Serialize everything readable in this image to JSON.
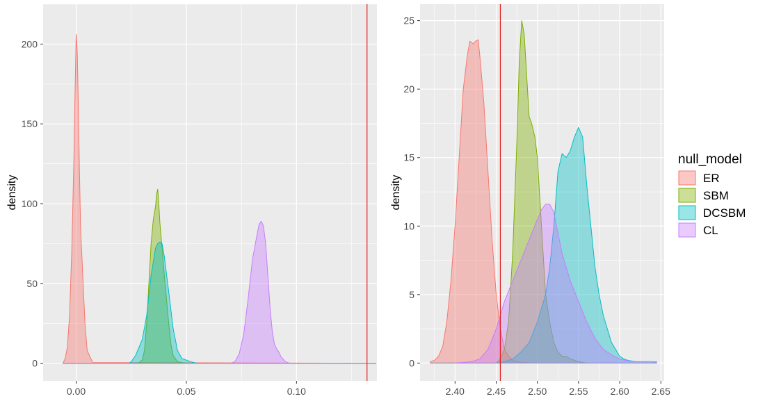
{
  "legend": {
    "title": "null_model",
    "position": "right",
    "entries": [
      "ER",
      "SBM",
      "DCSBM",
      "CL"
    ]
  },
  "colors": {
    "ER": "#F8766D",
    "SBM": "#7CAE00",
    "DCSBM": "#00BFC4",
    "CL": "#C77CFF",
    "vline": "#E31A1C",
    "panel_bg": "#EBEBEB",
    "grid": "#FFFFFF"
  },
  "chart_data": [
    {
      "type": "area",
      "ylabel": "density",
      "xlabel": "",
      "xlim": [
        -0.015,
        0.1365
      ],
      "ylim": [
        -11,
        225
      ],
      "x_ticks": [
        0.0,
        0.05,
        0.1
      ],
      "x_tick_labels": [
        "0.00",
        "0.05",
        "0.10"
      ],
      "y_ticks": [
        0,
        50,
        100,
        150,
        200
      ],
      "y_tick_labels": [
        "0",
        "50",
        "100",
        "150",
        "200"
      ],
      "grid": true,
      "vline": 0.132,
      "series": [
        {
          "name": "ER",
          "points": [
            [
              -0.006,
              0
            ],
            [
              -0.005,
              3
            ],
            [
              -0.004,
              10
            ],
            [
              -0.003,
              30
            ],
            [
              -0.002,
              70
            ],
            [
              -0.001,
              130
            ],
            [
              -0.0005,
              170
            ],
            [
              0.0,
              206
            ],
            [
              0.0005,
              195
            ],
            [
              0.001,
              160
            ],
            [
              0.0015,
              120
            ],
            [
              0.002,
              85
            ],
            [
              0.003,
              55
            ],
            [
              0.004,
              25
            ],
            [
              0.005,
              8
            ],
            [
              0.0075,
              0.5
            ],
            [
              0.136,
              0
            ]
          ]
        },
        {
          "name": "SBM",
          "points": [
            [
              -0.006,
              0
            ],
            [
              0.028,
              0
            ],
            [
              0.03,
              2
            ],
            [
              0.031,
              8
            ],
            [
              0.032,
              25
            ],
            [
              0.033,
              50
            ],
            [
              0.034,
              75
            ],
            [
              0.035,
              90
            ],
            [
              0.036,
              98
            ],
            [
              0.0365,
              106
            ],
            [
              0.037,
              109
            ],
            [
              0.0375,
              100
            ],
            [
              0.038,
              88
            ],
            [
              0.039,
              72
            ],
            [
              0.04,
              55
            ],
            [
              0.041,
              40
            ],
            [
              0.042,
              25
            ],
            [
              0.043,
              12
            ],
            [
              0.044,
              5
            ],
            [
              0.046,
              1
            ],
            [
              0.05,
              0
            ],
            [
              0.136,
              0
            ]
          ]
        },
        {
          "name": "DCSBM",
          "points": [
            [
              -0.006,
              0
            ],
            [
              0.024,
              0
            ],
            [
              0.025,
              1
            ],
            [
              0.027,
              5
            ],
            [
              0.03,
              15
            ],
            [
              0.032,
              30
            ],
            [
              0.034,
              55
            ],
            [
              0.036,
              72
            ],
            [
              0.037,
              75
            ],
            [
              0.038,
              76
            ],
            [
              0.039,
              75
            ],
            [
              0.04,
              67
            ],
            [
              0.042,
              45
            ],
            [
              0.044,
              22
            ],
            [
              0.046,
              8
            ],
            [
              0.048,
              3
            ],
            [
              0.05,
              2
            ],
            [
              0.052,
              1
            ],
            [
              0.055,
              0
            ],
            [
              0.136,
              0
            ]
          ]
        },
        {
          "name": "CL",
          "points": [
            [
              -0.006,
              0
            ],
            [
              0.07,
              0
            ],
            [
              0.072,
              1
            ],
            [
              0.074,
              6
            ],
            [
              0.076,
              18
            ],
            [
              0.078,
              40
            ],
            [
              0.08,
              65
            ],
            [
              0.082,
              80
            ],
            [
              0.083,
              87
            ],
            [
              0.084,
              89
            ],
            [
              0.085,
              86
            ],
            [
              0.086,
              75
            ],
            [
              0.087,
              55
            ],
            [
              0.088,
              35
            ],
            [
              0.089,
              20
            ],
            [
              0.09,
              12
            ],
            [
              0.091,
              9
            ],
            [
              0.092,
              7
            ],
            [
              0.093,
              4
            ],
            [
              0.095,
              1
            ],
            [
              0.097,
              0
            ],
            [
              0.136,
              0
            ]
          ]
        }
      ]
    },
    {
      "type": "area",
      "ylabel": "density",
      "xlabel": "",
      "xlim": [
        2.3575,
        2.654
      ],
      "ylim": [
        -1.3,
        26.2
      ],
      "x_ticks": [
        2.4,
        2.45,
        2.5,
        2.55,
        2.6,
        2.65
      ],
      "x_tick_labels": [
        "2.40",
        "2.45",
        "2.50",
        "2.55",
        "2.60",
        "2.65"
      ],
      "y_ticks": [
        0,
        5,
        10,
        15,
        20,
        25
      ],
      "y_tick_labels": [
        "0",
        "5",
        "10",
        "15",
        "20",
        "25"
      ],
      "grid": true,
      "vline": 2.455,
      "series": [
        {
          "name": "ER",
          "points": [
            [
              2.37,
              0.1
            ],
            [
              2.375,
              0.2
            ],
            [
              2.38,
              0.5
            ],
            [
              2.385,
              1.2
            ],
            [
              2.39,
              3
            ],
            [
              2.395,
              6
            ],
            [
              2.4,
              10
            ],
            [
              2.405,
              15
            ],
            [
              2.41,
              20
            ],
            [
              2.415,
              22.5
            ],
            [
              2.418,
              23.5
            ],
            [
              2.422,
              23.3
            ],
            [
              2.425,
              23.5
            ],
            [
              2.428,
              23.6
            ],
            [
              2.43,
              22.5
            ],
            [
              2.435,
              19
            ],
            [
              2.44,
              14
            ],
            [
              2.445,
              9
            ],
            [
              2.45,
              5
            ],
            [
              2.455,
              2.5
            ],
            [
              2.46,
              1
            ],
            [
              2.465,
              0.5
            ],
            [
              2.47,
              0.2
            ],
            [
              2.48,
              0.05
            ],
            [
              2.5,
              0
            ],
            [
              2.645,
              0
            ]
          ]
        },
        {
          "name": "SBM",
          "points": [
            [
              2.37,
              0
            ],
            [
              2.45,
              0
            ],
            [
              2.455,
              0.3
            ],
            [
              2.46,
              1
            ],
            [
              2.465,
              3
            ],
            [
              2.47,
              8
            ],
            [
              2.475,
              16
            ],
            [
              2.478,
              22
            ],
            [
              2.481,
              25
            ],
            [
              2.484,
              24
            ],
            [
              2.487,
              21
            ],
            [
              2.49,
              18
            ],
            [
              2.493,
              17.5
            ],
            [
              2.497,
              16.5
            ],
            [
              2.5,
              15
            ],
            [
              2.503,
              12
            ],
            [
              2.507,
              8
            ],
            [
              2.51,
              5
            ],
            [
              2.515,
              3
            ],
            [
              2.52,
              1.5
            ],
            [
              2.525,
              0.8
            ],
            [
              2.53,
              0.5
            ],
            [
              2.535,
              0.5
            ],
            [
              2.54,
              0.3
            ],
            [
              2.55,
              0.1
            ],
            [
              2.56,
              0
            ],
            [
              2.645,
              0
            ]
          ]
        },
        {
          "name": "DCSBM",
          "points": [
            [
              2.37,
              0
            ],
            [
              2.45,
              0
            ],
            [
              2.46,
              0.1
            ],
            [
              2.47,
              0.3
            ],
            [
              2.48,
              0.8
            ],
            [
              2.49,
              1.5
            ],
            [
              2.5,
              3
            ],
            [
              2.51,
              5
            ],
            [
              2.515,
              7
            ],
            [
              2.52,
              10
            ],
            [
              2.525,
              14
            ],
            [
              2.53,
              15.3
            ],
            [
              2.535,
              15
            ],
            [
              2.54,
              15.5
            ],
            [
              2.545,
              16.5
            ],
            [
              2.55,
              17.2
            ],
            [
              2.555,
              16.5
            ],
            [
              2.56,
              13
            ],
            [
              2.565,
              10
            ],
            [
              2.57,
              7
            ],
            [
              2.575,
              5
            ],
            [
              2.58,
              3.5
            ],
            [
              2.585,
              2.5
            ],
            [
              2.59,
              1.5
            ],
            [
              2.595,
              1
            ],
            [
              2.6,
              0.5
            ],
            [
              2.605,
              0.3
            ],
            [
              2.61,
              0.2
            ],
            [
              2.62,
              0.1
            ],
            [
              2.64,
              0.1
            ],
            [
              2.645,
              0
            ]
          ]
        },
        {
          "name": "CL",
          "points": [
            [
              2.37,
              0
            ],
            [
              2.4,
              0
            ],
            [
              2.42,
              0.1
            ],
            [
              2.43,
              0.3
            ],
            [
              2.44,
              1
            ],
            [
              2.45,
              2.5
            ],
            [
              2.46,
              4.5
            ],
            [
              2.47,
              6
            ],
            [
              2.48,
              7.5
            ],
            [
              2.49,
              9
            ],
            [
              2.5,
              10.5
            ],
            [
              2.505,
              11.2
            ],
            [
              2.51,
              11.6
            ],
            [
              2.515,
              11.6
            ],
            [
              2.52,
              11
            ],
            [
              2.525,
              9.5
            ],
            [
              2.53,
              8
            ],
            [
              2.54,
              6
            ],
            [
              2.55,
              4.5
            ],
            [
              2.56,
              3
            ],
            [
              2.57,
              1.8
            ],
            [
              2.58,
              1
            ],
            [
              2.59,
              0.6
            ],
            [
              2.6,
              0.3
            ],
            [
              2.61,
              0.15
            ],
            [
              2.62,
              0.1
            ],
            [
              2.63,
              0.1
            ],
            [
              2.645,
              0.1
            ]
          ]
        }
      ]
    }
  ]
}
